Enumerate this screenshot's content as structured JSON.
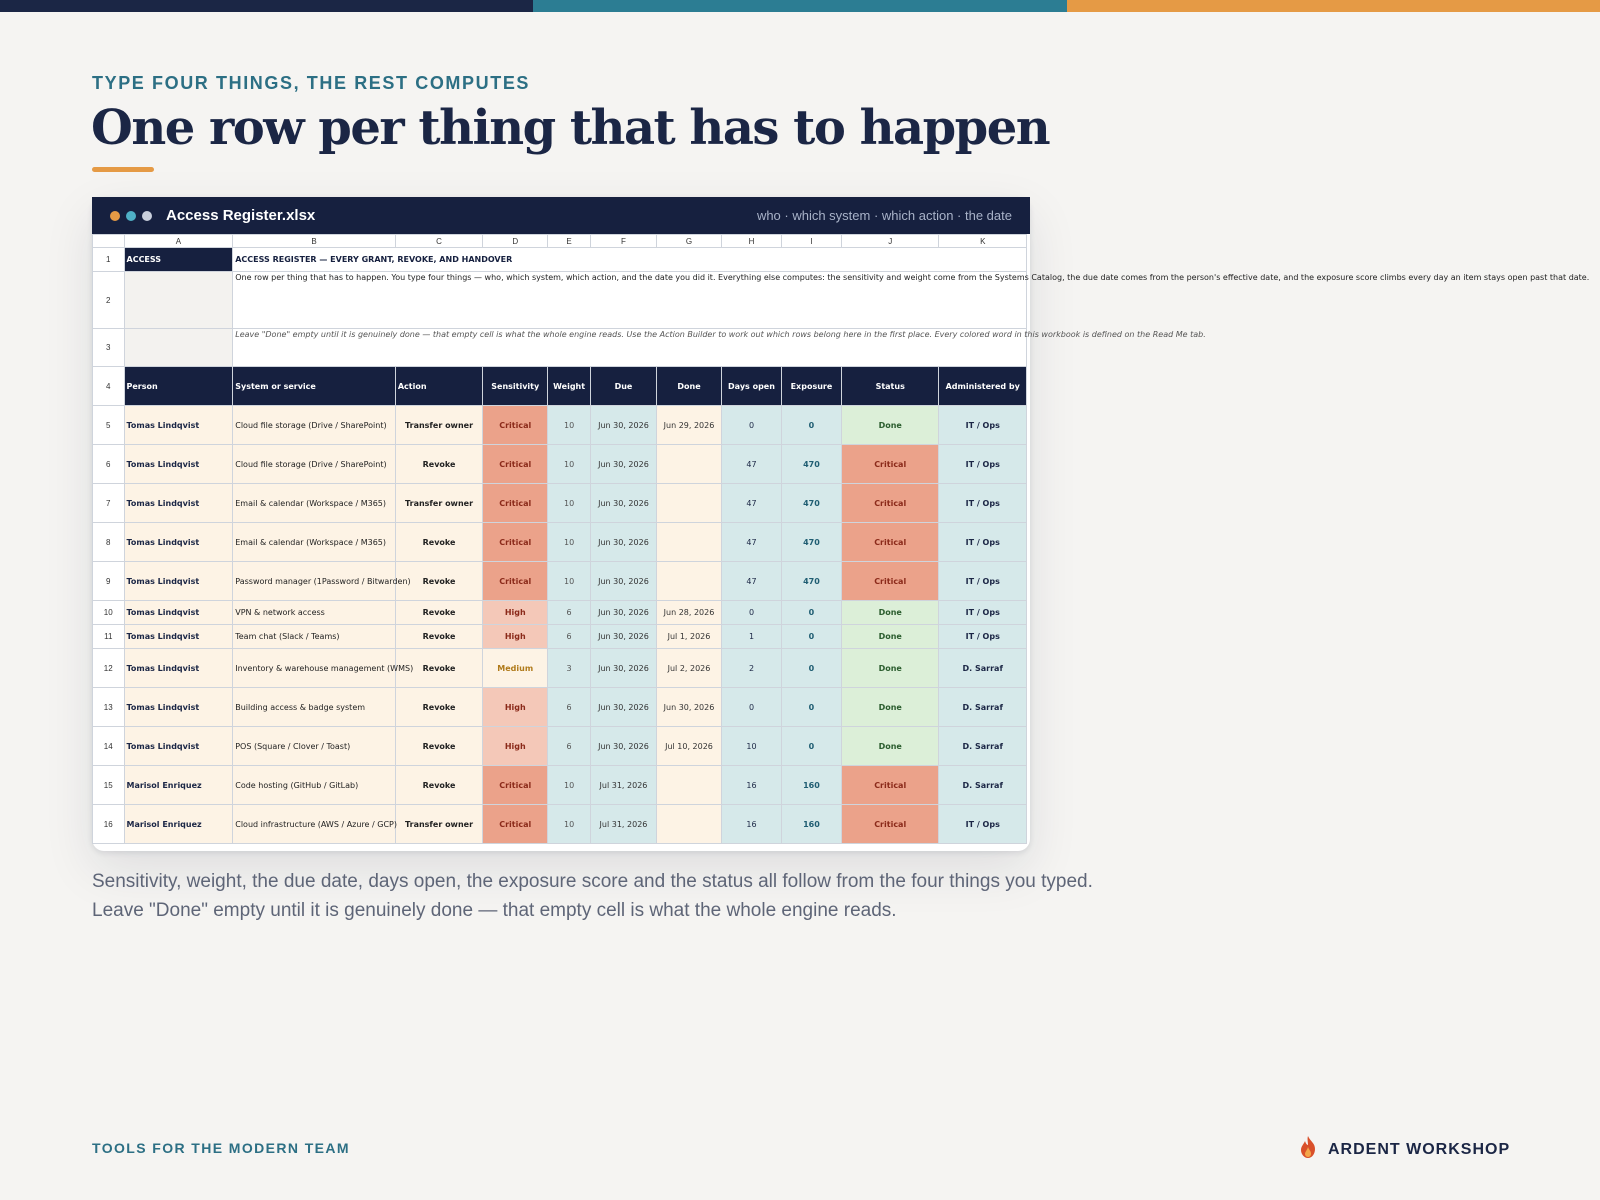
{
  "colors": {
    "navy": "#1b2645",
    "teal": "#2c7d93",
    "orange": "#e59a45"
  },
  "eyebrow": "TYPE FOUR THINGS, THE REST COMPUTES",
  "title": "One row per thing that has to happen",
  "window": {
    "filename": "Access Register.xlsx",
    "meta": "who · which system · which action · the date",
    "dots": [
      "#e59a45",
      "#4fb0c6",
      "#c9cfdc"
    ]
  },
  "sheet": {
    "columns": [
      "A",
      "B",
      "C",
      "D",
      "E",
      "F",
      "G",
      "H",
      "I",
      "J",
      "K"
    ],
    "row_numbers": [
      "1",
      "2",
      "3",
      "4",
      "5",
      "6",
      "7",
      "8",
      "9",
      "10",
      "11",
      "12",
      "13",
      "14",
      "15",
      "16"
    ],
    "access_label": "ACCESS",
    "heading": "ACCESS REGISTER — EVERY GRANT, REVOKE, AND HANDOVER",
    "description": "One row per thing that has to happen. You type four things — who, which system, which action, and the date you did it. Everything else computes: the sensitivity and weight come from the Systems Catalog, the due date comes from the person's effective date, and the exposure score climbs every day an item stays open past that date.",
    "note": "Leave \"Done\" empty until it is genuinely done — that empty cell is what the whole engine reads. Use the Action Builder to work out which rows belong here in the first place. Every colored word in this workbook is defined on the Read Me tab.",
    "headers": [
      "Person",
      "System or service",
      "Action",
      "Sensitivity",
      "Weight",
      "Due",
      "Done",
      "Days open",
      "Exposure",
      "Status",
      "Administered by"
    ],
    "rows": [
      {
        "person": "Tomas Lindqvist",
        "system": "Cloud file storage (Drive / SharePoint)",
        "action": "Transfer owner",
        "sensitivity": "Critical",
        "weight": "10",
        "due": "Jun 30, 2026",
        "done": "Jun 29, 2026",
        "days": "0",
        "exposure": "0",
        "status": "Done",
        "admin": "IT / Ops"
      },
      {
        "person": "Tomas Lindqvist",
        "system": "Cloud file storage (Drive / SharePoint)",
        "action": "Revoke",
        "sensitivity": "Critical",
        "weight": "10",
        "due": "Jun 30, 2026",
        "done": "",
        "days": "47",
        "exposure": "470",
        "status": "Critical",
        "admin": "IT / Ops"
      },
      {
        "person": "Tomas Lindqvist",
        "system": "Email & calendar (Workspace / M365)",
        "action": "Transfer owner",
        "sensitivity": "Critical",
        "weight": "10",
        "due": "Jun 30, 2026",
        "done": "",
        "days": "47",
        "exposure": "470",
        "status": "Critical",
        "admin": "IT / Ops"
      },
      {
        "person": "Tomas Lindqvist",
        "system": "Email & calendar (Workspace / M365)",
        "action": "Revoke",
        "sensitivity": "Critical",
        "weight": "10",
        "due": "Jun 30, 2026",
        "done": "",
        "days": "47",
        "exposure": "470",
        "status": "Critical",
        "admin": "IT / Ops"
      },
      {
        "person": "Tomas Lindqvist",
        "system": "Password manager (1Password / Bitwarden)",
        "action": "Revoke",
        "sensitivity": "Critical",
        "weight": "10",
        "due": "Jun 30, 2026",
        "done": "",
        "days": "47",
        "exposure": "470",
        "status": "Critical",
        "admin": "IT / Ops"
      },
      {
        "person": "Tomas Lindqvist",
        "system": "VPN & network access",
        "action": "Revoke",
        "sensitivity": "High",
        "weight": "6",
        "due": "Jun 30, 2026",
        "done": "Jun 28, 2026",
        "days": "0",
        "exposure": "0",
        "status": "Done",
        "admin": "IT / Ops"
      },
      {
        "person": "Tomas Lindqvist",
        "system": "Team chat (Slack / Teams)",
        "action": "Revoke",
        "sensitivity": "High",
        "weight": "6",
        "due": "Jun 30, 2026",
        "done": "Jul 1, 2026",
        "days": "1",
        "exposure": "0",
        "status": "Done",
        "admin": "IT / Ops"
      },
      {
        "person": "Tomas Lindqvist",
        "system": "Inventory & warehouse management (WMS)",
        "action": "Revoke",
        "sensitivity": "Medium",
        "weight": "3",
        "due": "Jun 30, 2026",
        "done": "Jul 2, 2026",
        "days": "2",
        "exposure": "0",
        "status": "Done",
        "admin": "D. Sarraf"
      },
      {
        "person": "Tomas Lindqvist",
        "system": "Building access & badge system",
        "action": "Revoke",
        "sensitivity": "High",
        "weight": "6",
        "due": "Jun 30, 2026",
        "done": "Jun 30, 2026",
        "days": "0",
        "exposure": "0",
        "status": "Done",
        "admin": "D. Sarraf"
      },
      {
        "person": "Tomas Lindqvist",
        "system": "POS (Square / Clover / Toast)",
        "action": "Revoke",
        "sensitivity": "High",
        "weight": "6",
        "due": "Jun 30, 2026",
        "done": "Jul 10, 2026",
        "days": "10",
        "exposure": "0",
        "status": "Done",
        "admin": "D. Sarraf"
      },
      {
        "person": "Marisol Enriquez",
        "system": "Code hosting (GitHub / GitLab)",
        "action": "Revoke",
        "sensitivity": "Critical",
        "weight": "10",
        "due": "Jul 31, 2026",
        "done": "",
        "days": "16",
        "exposure": "160",
        "status": "Critical",
        "admin": "D. Sarraf"
      },
      {
        "person": "Marisol Enriquez",
        "system": "Cloud infrastructure (AWS / Azure / GCP)",
        "action": "Transfer owner",
        "sensitivity": "Critical",
        "weight": "10",
        "due": "Jul 31, 2026",
        "done": "",
        "days": "16",
        "exposure": "160",
        "status": "Critical",
        "admin": "IT / Ops"
      }
    ]
  },
  "caption": {
    "line1": "Sensitivity, weight, the due date, days open, the exposure score and the status all follow from the four things you typed.",
    "line2": "Leave \"Done\" empty until it is genuinely done — that empty cell is what the whole engine reads."
  },
  "footer": {
    "tagline": "TOOLS FOR THE MODERN TEAM",
    "brand": "ARDENT WORKSHOP",
    "brand_icon": "flame-icon"
  }
}
